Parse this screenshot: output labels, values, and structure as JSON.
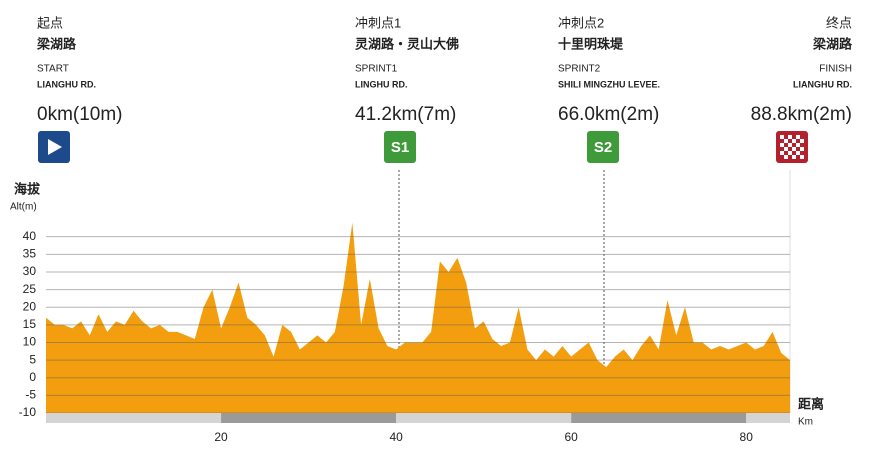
{
  "waypoints": [
    {
      "name_cn": "起点",
      "road_cn": "梁湖路",
      "name_en": "START",
      "road_en": "LIANGHU RD.",
      "distance": "0km(10m)"
    },
    {
      "name_cn": "冲刺点1",
      "road_cn": "灵湖路・灵山大佛",
      "name_en": "SPRINT1",
      "road_en": "LINGHU RD.",
      "distance": "41.2km(7m)",
      "badge": "S1"
    },
    {
      "name_cn": "冲刺点2",
      "road_cn": "十里明珠堤",
      "name_en": "SPRINT2",
      "road_en": "SHILI MINGZHU LEVEE.",
      "distance": "66.0km(2m)",
      "badge": "S2"
    },
    {
      "name_cn": "终点",
      "road_cn": "梁湖路",
      "name_en": "FINISH",
      "road_en": "LIANGHU RD.",
      "distance": "88.8km(2m)"
    }
  ],
  "chart_data": {
    "type": "area",
    "y_label_cn": "海拔",
    "y_label_en": "Alt(m)",
    "x_label_cn": "距离",
    "x_label_en": "Km",
    "x": [
      0,
      1,
      2,
      3,
      4,
      5,
      6,
      7,
      8,
      9,
      10,
      11,
      12,
      13,
      14,
      15,
      16,
      17,
      18,
      19,
      20,
      21,
      22,
      23,
      24,
      25,
      26,
      27,
      28,
      29,
      30,
      31,
      32,
      33,
      34,
      35,
      36,
      37,
      38,
      39,
      40,
      41,
      42,
      43,
      44,
      45,
      46,
      47,
      48,
      49,
      50,
      51,
      52,
      53,
      54,
      55,
      56,
      57,
      58,
      59,
      60,
      61,
      62,
      63,
      64,
      65,
      66,
      67,
      68,
      69,
      70,
      71,
      72,
      73,
      74,
      75,
      76,
      77,
      78,
      79,
      80,
      81,
      82,
      83,
      84,
      85
    ],
    "values": [
      17,
      15,
      15,
      14,
      16,
      12,
      18,
      13,
      16,
      15,
      19,
      16,
      14,
      15,
      13,
      13,
      12,
      11,
      20,
      25,
      14,
      20,
      27,
      17,
      15,
      12,
      6,
      15,
      13,
      8,
      10,
      12,
      10,
      13,
      26,
      44,
      15,
      28,
      14,
      9,
      8,
      10,
      10,
      10,
      13,
      33,
      30,
      34,
      27,
      14,
      16,
      11,
      9,
      10,
      20,
      8,
      5,
      8,
      6,
      9,
      6,
      8,
      10,
      5,
      3,
      6,
      8,
      5,
      9,
      12,
      8,
      22,
      12,
      20,
      10,
      10,
      8,
      9,
      8,
      9,
      10,
      8,
      9,
      13,
      7,
      5
    ],
    "color": "#f29e0f",
    "xlim": [
      0,
      85
    ],
    "xticks": [
      20,
      40,
      60,
      80
    ],
    "ylim": [
      -10,
      47
    ],
    "yticks": [
      -10,
      -5,
      0,
      5,
      10,
      15,
      20,
      25,
      30,
      35,
      40
    ],
    "grid": true
  }
}
